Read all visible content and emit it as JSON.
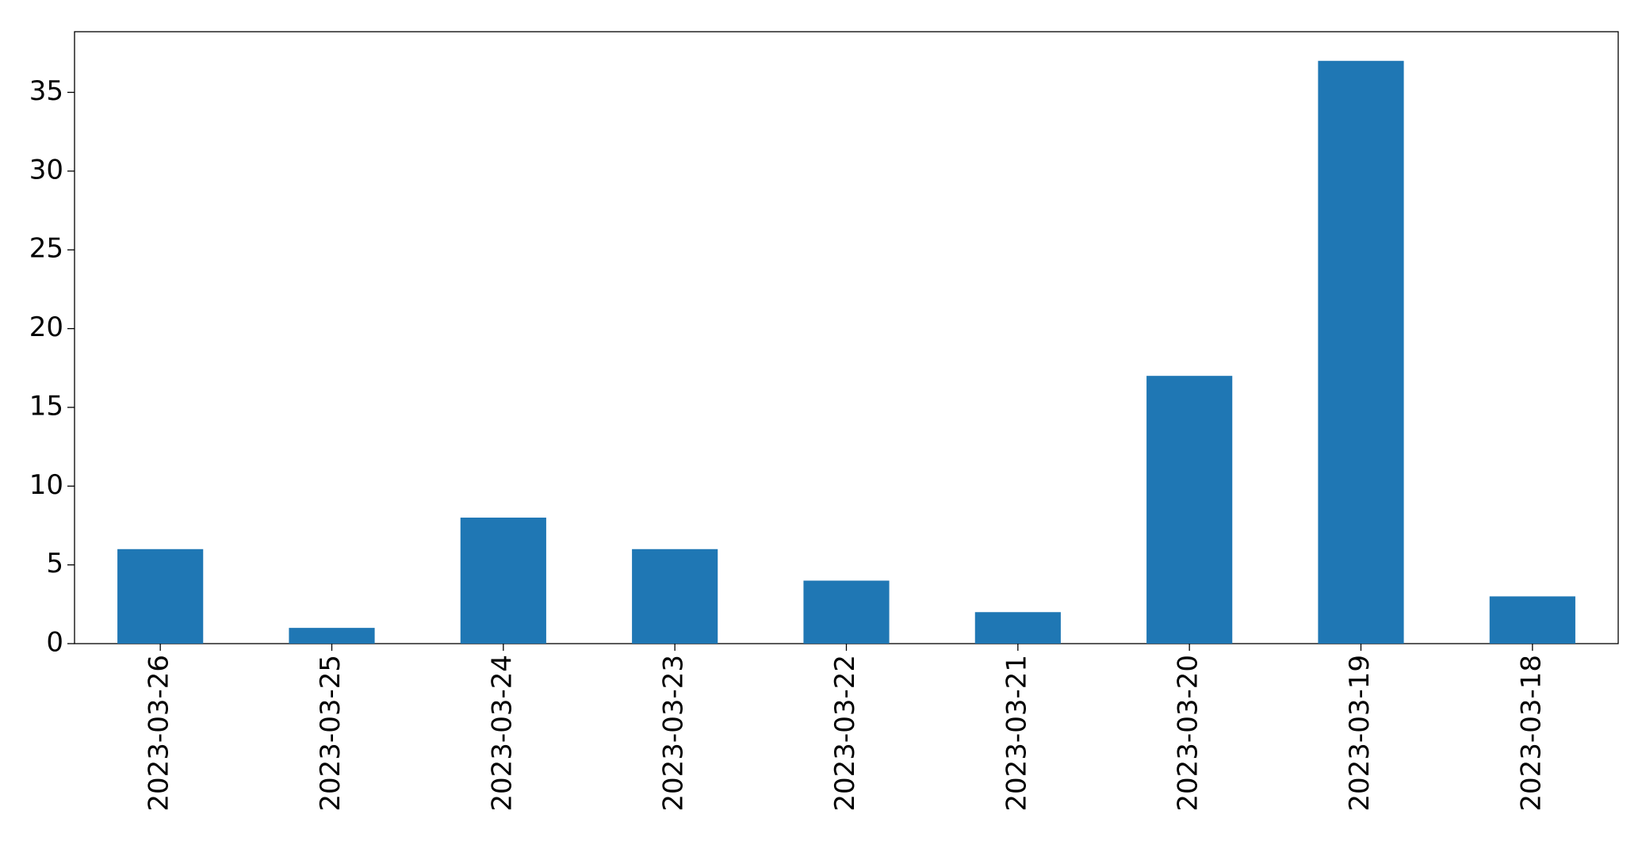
{
  "chart_data": {
    "type": "bar",
    "categories": [
      "2023-03-26",
      "2023-03-25",
      "2023-03-24",
      "2023-03-23",
      "2023-03-22",
      "2023-03-21",
      "2023-03-20",
      "2023-03-19",
      "2023-03-18"
    ],
    "values": [
      6,
      1,
      8,
      6,
      4,
      2,
      17,
      37,
      3
    ],
    "color": "#1f77b4",
    "ylim": [
      0,
      38.85
    ],
    "yticks": [
      0,
      5,
      10,
      15,
      20,
      25,
      30,
      35
    ],
    "grid": false
  }
}
